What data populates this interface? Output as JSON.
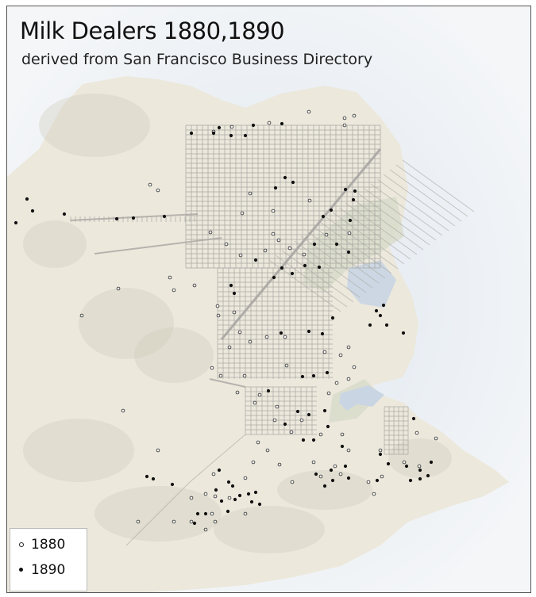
{
  "map": {
    "title": "Milk Dealers 1880,1890",
    "subtitle": "derived from San Francisco Business Directory",
    "legend": [
      {
        "label": "1880",
        "symbol": "open-circle"
      },
      {
        "label": "1890",
        "symbol": "filled-circle"
      }
    ],
    "colors": {
      "water": "#e8edf1",
      "land": "#ece8dc",
      "streets": "#a9a7a3",
      "bay_fill": "#c8d6e6",
      "marsh": "#d6d8c6",
      "dot_1880": "#ffffff",
      "dot_1890": "#111111"
    }
  }
}
